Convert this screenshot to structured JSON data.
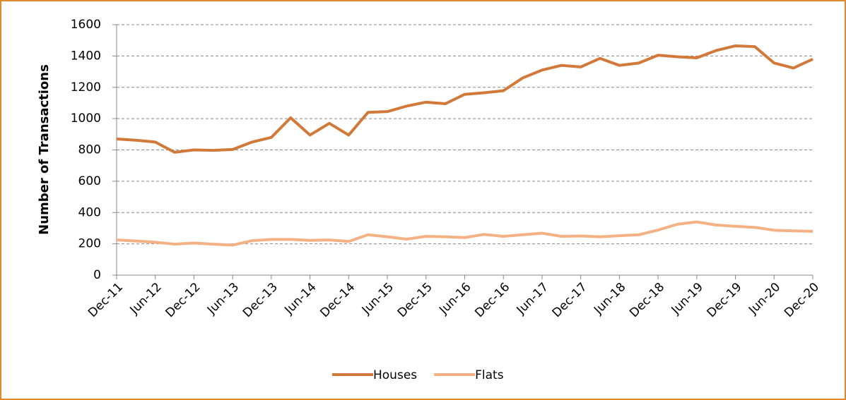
{
  "chart_data": {
    "type": "line",
    "y_label": "Number of Transactions",
    "categories": [
      "Dec-11",
      null,
      "Jun-12",
      null,
      "Dec-12",
      null,
      "Jun-13",
      null,
      "Dec-13",
      null,
      "Jun-14",
      null,
      "Dec-14",
      null,
      "Jun-15",
      null,
      "Dec-15",
      null,
      "Jun-16",
      null,
      "Dec-16",
      null,
      "Jun-17",
      null,
      "Dec-17",
      null,
      "Jun-18",
      null,
      "Dec-18",
      null,
      "Jun-19",
      null,
      "Dec-19",
      null,
      "Jun-20",
      null,
      "Dec-20"
    ],
    "series": [
      {
        "name": "Houses",
        "color": "#d2793a",
        "values": [
          870,
          862,
          850,
          785,
          800,
          797,
          803,
          850,
          880,
          1005,
          895,
          970,
          895,
          1040,
          1045,
          1080,
          1105,
          1095,
          1155,
          1165,
          1178,
          1260,
          1310,
          1340,
          1330,
          1385,
          1340,
          1355,
          1405,
          1395,
          1388,
          1435,
          1465,
          1460,
          1355,
          1323,
          1380
        ]
      },
      {
        "name": "Flats",
        "color": "#f4b183",
        "values": [
          225,
          218,
          210,
          198,
          205,
          198,
          192,
          220,
          228,
          228,
          222,
          225,
          215,
          258,
          245,
          230,
          248,
          245,
          240,
          260,
          248,
          258,
          268,
          248,
          250,
          245,
          252,
          258,
          288,
          325,
          340,
          320,
          312,
          305,
          287,
          283,
          280
        ]
      }
    ],
    "ylim": [
      0,
      1600
    ],
    "yticks": [
      0,
      200,
      400,
      600,
      800,
      1000,
      1200,
      1400,
      1600
    ],
    "grid": true,
    "legend": "bottom"
  }
}
